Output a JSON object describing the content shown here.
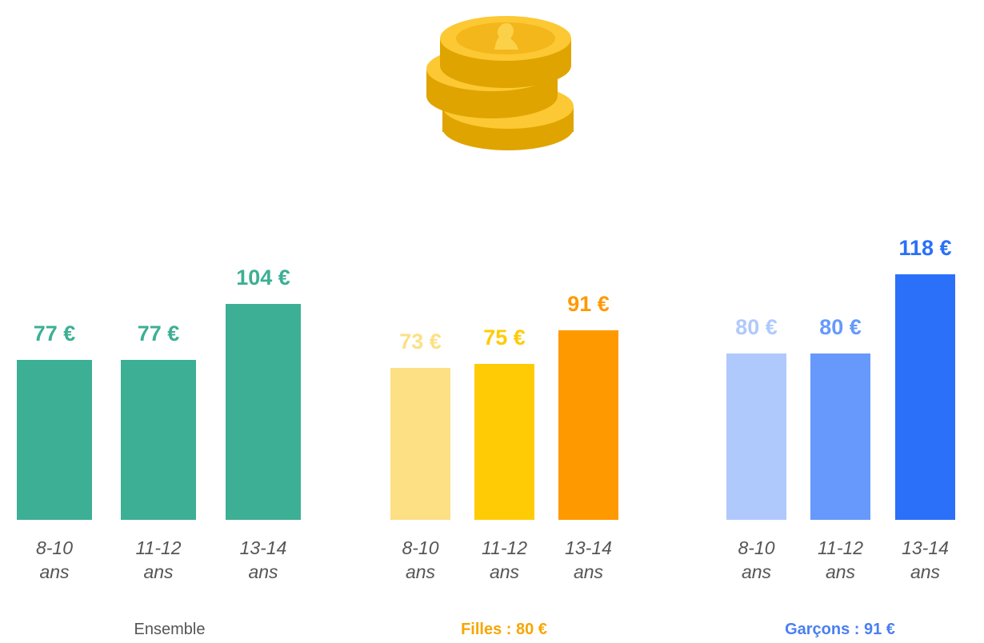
{
  "chart_data": [
    {
      "type": "bar",
      "title": "Ensemble",
      "title_color": "#555555",
      "title_bold": false,
      "categories": [
        "8-10 ans",
        "11-12 ans",
        "13-14 ans"
      ],
      "values": [
        77,
        77,
        104
      ],
      "value_labels": [
        "77 €",
        "77 €",
        "104 €"
      ],
      "colors": [
        "#3daf95",
        "#3daf95",
        "#3daf95"
      ]
    },
    {
      "type": "bar",
      "title": "Filles : 80 €",
      "title_color": "#f7a600",
      "title_bold": true,
      "categories": [
        "8-10 ans",
        "11-12 ans",
        "13-14 ans"
      ],
      "values": [
        73,
        75,
        91
      ],
      "value_labels": [
        "73 €",
        "75 €",
        "91 €"
      ],
      "colors": [
        "#fde084",
        "#ffcb05",
        "#ff9900"
      ]
    },
    {
      "type": "bar",
      "title": "Garçons : 91 €",
      "title_color": "#4a7ff0",
      "title_bold": true,
      "categories": [
        "8-10 ans",
        "11-12 ans",
        "13-14 ans"
      ],
      "values": [
        80,
        80,
        118
      ],
      "value_labels": [
        "80 €",
        "80 €",
        "118 €"
      ],
      "colors": [
        "#b0c9fd",
        "#6699fb",
        "#2b70f8"
      ]
    }
  ]
}
